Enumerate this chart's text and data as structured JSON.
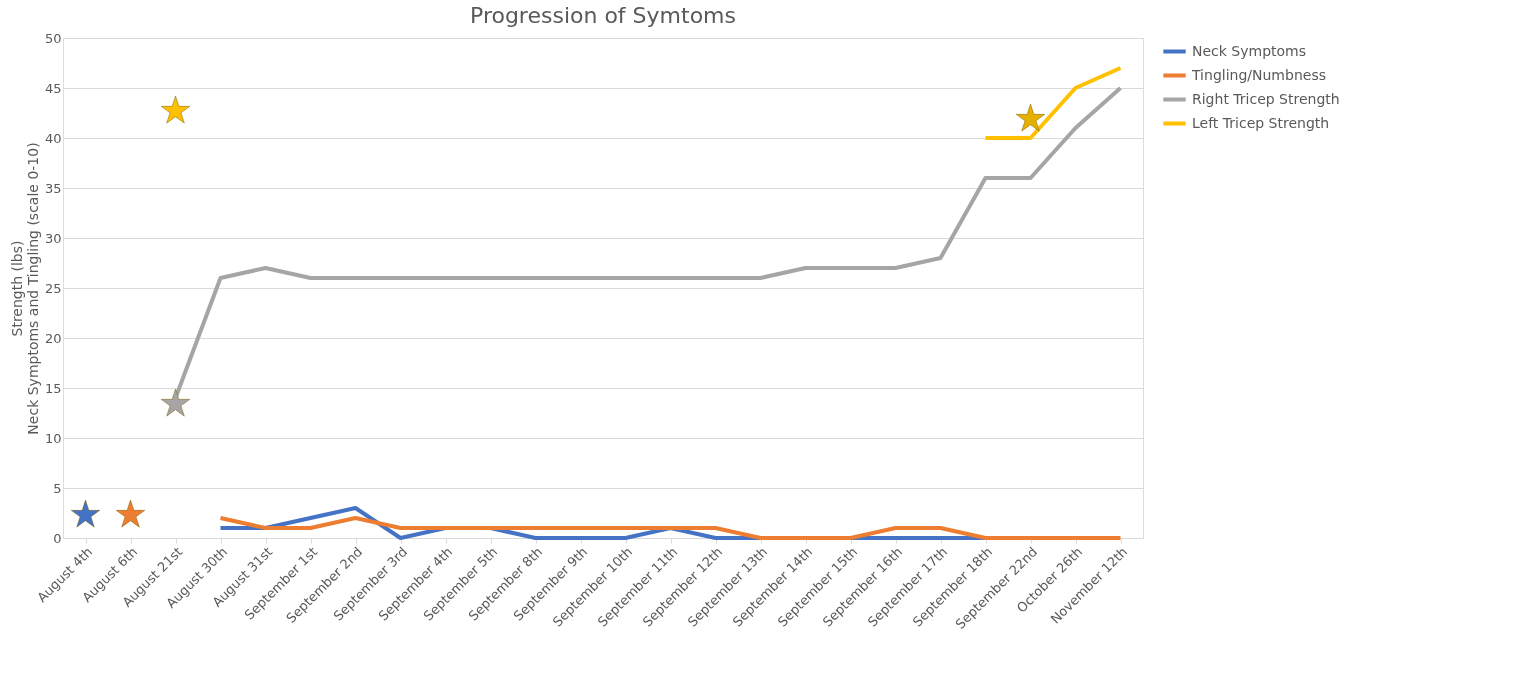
{
  "chart_data": {
    "type": "line",
    "title": "Progression of Symtoms",
    "ylabel": "Strength (lbs)\nNeck Symptoms and Tingling (scale 0-10)",
    "categories": [
      "August 4th",
      "August 6th",
      "August 21st",
      "August 30th",
      "August 31st",
      "September 1st",
      "September 2nd",
      "September 3rd",
      "September 4th",
      "September 5th",
      "September 8th",
      "September 9th",
      "September 10th",
      "September 11th",
      "September 12th",
      "September 13th",
      "September 14th",
      "September 15th",
      "September 16th",
      "September 17th",
      "September 18th",
      "September 22nd",
      "October 26th",
      "November 12th"
    ],
    "series": [
      {
        "name": "Neck Symptoms",
        "color": "#4472c4",
        "values": [
          null,
          null,
          null,
          1,
          1,
          2,
          3,
          0,
          1,
          1,
          0,
          0,
          0,
          1,
          0,
          0,
          0,
          0,
          0,
          0,
          0,
          0,
          null,
          null
        ]
      },
      {
        "name": "Tingling/Numbness",
        "color": "#ed7d31",
        "values": [
          null,
          null,
          null,
          2,
          1,
          1,
          2,
          1,
          1,
          1,
          1,
          1,
          1,
          1,
          1,
          0,
          0,
          0,
          1,
          1,
          0,
          0,
          0,
          0
        ]
      },
      {
        "name": "Right Tricep Strength",
        "color": "#a5a5a5",
        "values": [
          null,
          null,
          14,
          26,
          27,
          26,
          26,
          26,
          26,
          26,
          26,
          26,
          26,
          26,
          26,
          26,
          27,
          27,
          27,
          28,
          36,
          36,
          41,
          45
        ]
      },
      {
        "name": "Left Tricep Strength",
        "color": "#ffc000",
        "values": [
          null,
          null,
          null,
          null,
          null,
          null,
          null,
          null,
          null,
          null,
          null,
          null,
          null,
          null,
          null,
          null,
          null,
          null,
          null,
          null,
          40,
          40,
          45,
          47
        ]
      },
      {
        "type": "scatter",
        "marker": "star",
        "color": "#4472c4",
        "values": [
          2.3,
          null,
          null,
          null,
          null,
          null,
          null,
          null,
          null,
          null,
          null,
          null,
          null,
          null,
          null,
          null,
          null,
          null,
          null,
          null,
          null,
          null,
          null,
          null
        ]
      },
      {
        "type": "scatter",
        "marker": "star",
        "color": "#ed7d31",
        "values": [
          null,
          2.3,
          null,
          null,
          null,
          null,
          null,
          null,
          null,
          null,
          null,
          null,
          null,
          null,
          null,
          null,
          null,
          null,
          null,
          null,
          null,
          null,
          null,
          null
        ]
      },
      {
        "type": "scatter",
        "marker": "star",
        "color": "#ffc000",
        "values": [
          null,
          null,
          42.7,
          null,
          null,
          null,
          null,
          null,
          null,
          null,
          null,
          null,
          null,
          null,
          null,
          null,
          null,
          null,
          null,
          null,
          null,
          null,
          null,
          null
        ]
      },
      {
        "type": "scatter",
        "marker": "star",
        "color": "#a5a5a5",
        "values": [
          null,
          null,
          13.4,
          null,
          null,
          null,
          null,
          null,
          null,
          null,
          null,
          null,
          null,
          null,
          null,
          null,
          null,
          null,
          null,
          null,
          null,
          null,
          null,
          null
        ]
      },
      {
        "type": "scatter",
        "marker": "star",
        "color": "#e6b000",
        "values": [
          null,
          null,
          null,
          null,
          null,
          null,
          null,
          null,
          null,
          null,
          null,
          null,
          null,
          null,
          null,
          null,
          null,
          null,
          null,
          null,
          null,
          41.9,
          null,
          null
        ]
      }
    ],
    "ylim": [
      0,
      50
    ],
    "yticks": [
      0,
      5,
      10,
      15,
      20,
      25,
      30,
      35,
      40,
      45,
      50
    ],
    "grid": "y",
    "legend": "right",
    "marker": "none",
    "line_style": "solid"
  }
}
